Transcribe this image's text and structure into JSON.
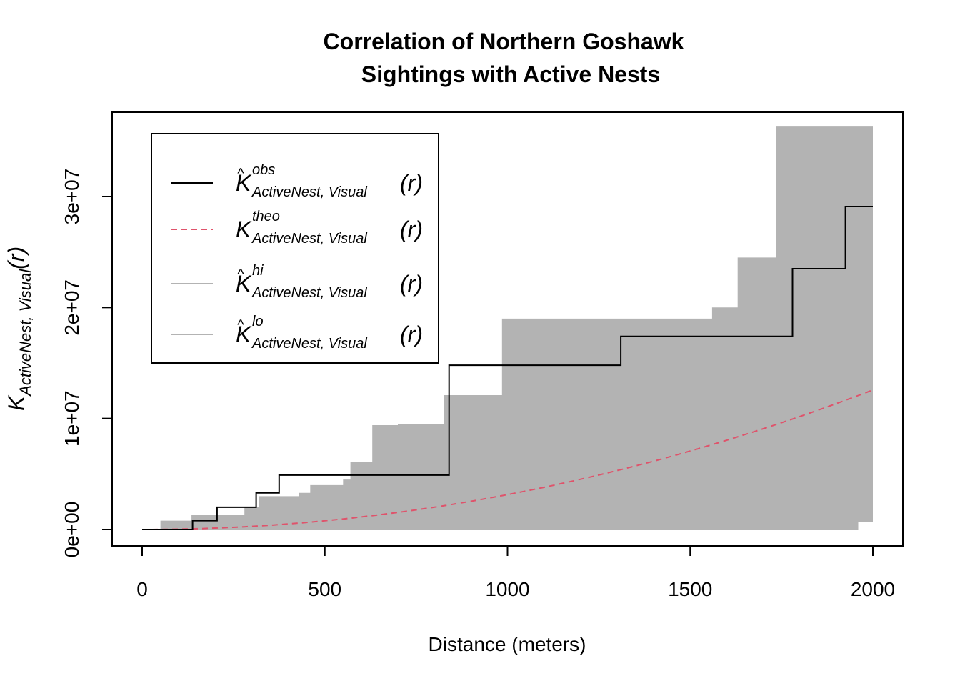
{
  "chart_data": {
    "type": "line",
    "title_lines": [
      "Correlation of Northern Goshawk",
      "Sightings with Active Nests"
    ],
    "xlabel": "Distance (meters)",
    "ylabel": {
      "main": "K",
      "sub": "ActiveNest, Visual",
      "arg": "(r)"
    },
    "xlim": [
      0,
      2000
    ],
    "ylim": [
      0,
      36000000
    ],
    "x_ticks": [
      0,
      500,
      1000,
      1500,
      2000
    ],
    "x_tick_labels": [
      "0",
      "500",
      "1000",
      "1500",
      "2000"
    ],
    "y_ticks": [
      0,
      10000000,
      20000000,
      30000000
    ],
    "y_tick_labels": [
      "0e+00",
      "1e+07",
      "2e+07",
      "3e+07"
    ],
    "grid": false,
    "legend_position": "top-left",
    "series": [
      {
        "name": "obs",
        "color": "#000000",
        "dash": "solid",
        "step": true,
        "points": [
          [
            0,
            0
          ],
          [
            138,
            0
          ],
          [
            138,
            800000
          ],
          [
            205,
            800000
          ],
          [
            205,
            2000000
          ],
          [
            312,
            2000000
          ],
          [
            312,
            3300000
          ],
          [
            375,
            3300000
          ],
          [
            375,
            4900000
          ],
          [
            840,
            4900000
          ],
          [
            840,
            14800000
          ],
          [
            1310,
            14800000
          ],
          [
            1310,
            17400000
          ],
          [
            1780,
            17400000
          ],
          [
            1780,
            23500000
          ],
          [
            1925,
            23500000
          ],
          [
            1925,
            29100000
          ],
          [
            2000,
            29100000
          ]
        ]
      },
      {
        "name": "theo",
        "color": "#DF536B",
        "dash": "dashed",
        "formula": "pi*r^2",
        "values_at": {
          "0": 0,
          "500": 785000,
          "1000": 3140000,
          "1500": 7070000,
          "2000": 12570000
        }
      }
    ],
    "envelope": {
      "color": "#B3B3B3",
      "hi": [
        [
          0,
          0
        ],
        [
          50,
          0
        ],
        [
          50,
          800000
        ],
        [
          135,
          800000
        ],
        [
          135,
          1300000
        ],
        [
          280,
          1300000
        ],
        [
          280,
          2000000
        ],
        [
          320,
          2000000
        ],
        [
          320,
          3000000
        ],
        [
          430,
          3000000
        ],
        [
          430,
          3300000
        ],
        [
          460,
          3300000
        ],
        [
          460,
          4000000
        ],
        [
          550,
          4000000
        ],
        [
          550,
          4500000
        ],
        [
          570,
          4500000
        ],
        [
          570,
          6100000
        ],
        [
          630,
          6100000
        ],
        [
          630,
          9400000
        ],
        [
          700,
          9400000
        ],
        [
          700,
          9500000
        ],
        [
          825,
          9500000
        ],
        [
          825,
          12100000
        ],
        [
          985,
          12100000
        ],
        [
          985,
          19000000
        ],
        [
          1560,
          19000000
        ],
        [
          1560,
          20000000
        ],
        [
          1630,
          20000000
        ],
        [
          1630,
          24500000
        ],
        [
          1735,
          24500000
        ],
        [
          1735,
          36300000
        ],
        [
          2000,
          36300000
        ]
      ],
      "lo": [
        [
          0,
          0
        ],
        [
          1960,
          0
        ],
        [
          1960,
          650000
        ],
        [
          2000,
          650000
        ]
      ]
    },
    "legend": [
      {
        "key": "obs",
        "hat": true,
        "sup": "obs",
        "sub": "ActiveNest, Visual",
        "main": "K",
        "arg": "(r)",
        "color": "#000000",
        "dash": "solid"
      },
      {
        "key": "theo",
        "hat": false,
        "sup": "theo",
        "sub": "ActiveNest, Visual",
        "main": "K",
        "arg": "(r)",
        "color": "#DF536B",
        "dash": "dashed"
      },
      {
        "key": "hi",
        "hat": true,
        "sup": "hi",
        "sub": "ActiveNest, Visual",
        "main": "K",
        "arg": "(r)",
        "color": "#B3B3B3",
        "dash": "solid"
      },
      {
        "key": "lo",
        "hat": true,
        "sup": "lo",
        "sub": "ActiveNest, Visual",
        "main": "K",
        "arg": "(r)",
        "color": "#B3B3B3",
        "dash": "solid"
      }
    ]
  }
}
